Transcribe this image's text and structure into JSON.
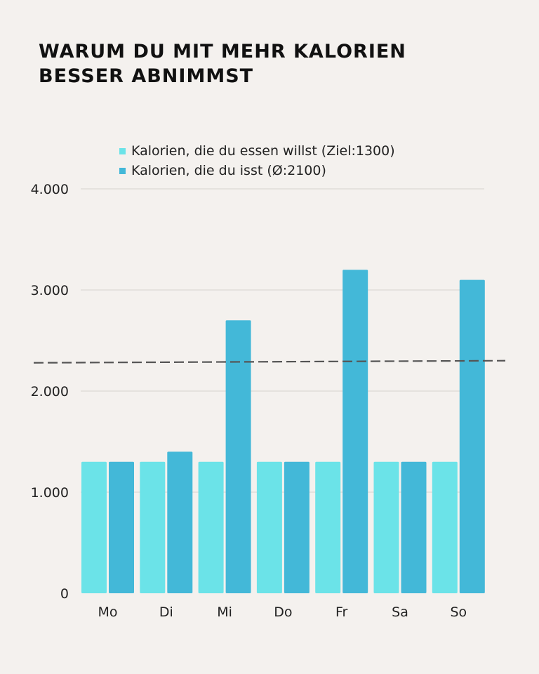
{
  "chart_data": {
    "type": "bar",
    "title": "WARUM DU MIT MEHR KALORIEN BESSER ABNIMMST",
    "categories": [
      "Mo",
      "Di",
      "Mi",
      "Do",
      "Fr",
      "Sa",
      "So"
    ],
    "series": [
      {
        "name": "Kalorien, die du essen willst (Ziel:1300)",
        "color": "#6be3e8",
        "values": [
          1300,
          1300,
          1300,
          1300,
          1300,
          1300,
          1300
        ]
      },
      {
        "name": "Kalorien, die du isst (Ø:2100)",
        "color": "#43b8d8",
        "values": [
          1300,
          1400,
          2700,
          1300,
          3200,
          1300,
          3100
        ]
      }
    ],
    "reference_line": {
      "style": "dashed",
      "color": "#555555",
      "value": 2290
    },
    "ylim": [
      0,
      4000
    ],
    "yticks": [
      "0",
      "1.000",
      "2.000",
      "3.000",
      "4.000"
    ],
    "ytick_values": [
      0,
      1000,
      2000,
      3000,
      4000
    ],
    "grid": true,
    "legend_position": "top",
    "xlabel": "",
    "ylabel": ""
  }
}
